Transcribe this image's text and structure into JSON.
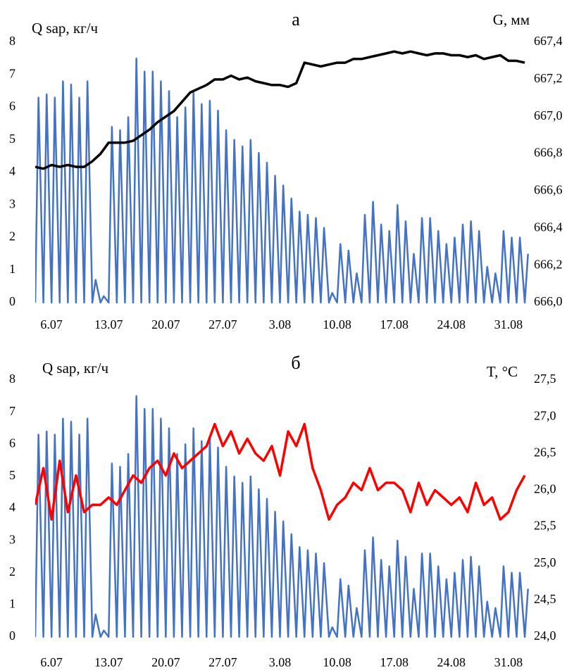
{
  "chart_data": [
    {
      "type": "line",
      "title": "а",
      "ylabel": "Q sap, кг/ч",
      "y2label": "G, мм",
      "xlim": [
        4,
        64.6
      ],
      "xticks": [
        {
          "value": 6,
          "label": "6.07"
        },
        {
          "value": 13,
          "label": "13.07"
        },
        {
          "value": 20,
          "label": "20.07"
        },
        {
          "value": 27,
          "label": "27.07"
        },
        {
          "value": 34,
          "label": "3.08"
        },
        {
          "value": 41,
          "label": "10.08"
        },
        {
          "value": 48,
          "label": "17.08"
        },
        {
          "value": 55,
          "label": "24.08"
        },
        {
          "value": 62,
          "label": "31.08"
        }
      ],
      "ylim": [
        0,
        8
      ],
      "yticks": [
        0,
        1,
        2,
        3,
        4,
        5,
        6,
        7,
        8
      ],
      "y2lim": [
        666.0,
        667.4
      ],
      "y2ticks": [
        {
          "value": 666.0,
          "label": "666,0"
        },
        {
          "value": 666.2,
          "label": "666,2"
        },
        {
          "value": 666.4,
          "label": "666,4"
        },
        {
          "value": 666.6,
          "label": "666,6"
        },
        {
          "value": 666.8,
          "label": "666,8"
        },
        {
          "value": 667.0,
          "label": "667,0"
        },
        {
          "value": 667.2,
          "label": "667,2"
        },
        {
          "value": 667.4,
          "label": "667,4"
        }
      ],
      "series": [
        {
          "color": "#4472c4",
          "x": [
            4,
            4.4,
            5,
            5.4,
            6,
            6.4,
            7,
            7.4,
            8,
            8.4,
            9,
            9.4,
            10,
            10.4,
            11,
            11.4,
            12,
            12.4,
            13,
            13.4,
            14,
            14.4,
            15,
            15.4,
            16,
            16.4,
            17,
            17.4,
            18,
            18.4,
            19,
            19.4,
            20,
            20.4,
            21,
            21.4,
            22,
            22.4,
            23,
            23.4,
            24,
            24.4,
            25,
            25.4,
            26,
            26.4,
            27,
            27.4,
            28,
            28.4,
            29,
            29.4,
            30,
            30.4,
            31,
            31.4,
            32,
            32.4,
            33,
            33.4,
            34,
            34.4,
            35,
            35.4,
            36,
            36.4,
            37,
            37.4,
            38,
            38.4,
            39,
            39.4,
            40,
            40.4,
            41,
            41.4,
            42,
            42.4,
            43,
            43.4,
            44,
            44.4,
            45,
            45.4,
            46,
            46.4,
            47,
            47.4,
            48,
            48.4,
            49,
            49.4,
            50,
            50.4,
            51,
            51.4,
            52,
            52.4,
            53,
            53.4,
            54,
            54.4,
            55,
            55.4,
            56,
            56.4,
            57,
            57.4,
            58,
            58.4,
            59,
            59.4,
            60,
            60.4,
            61,
            61.4,
            62,
            62.4,
            63,
            63.4,
            64,
            64.4
          ],
          "values": [
            0,
            6.3,
            0,
            6.4,
            0,
            6.3,
            0,
            6.8,
            0,
            6.7,
            0,
            6.3,
            0,
            6.8,
            0,
            0.7,
            0,
            0.2,
            0,
            5.4,
            0,
            5.3,
            0,
            5.7,
            0,
            7.5,
            0,
            7.1,
            0,
            7.1,
            0,
            6.8,
            0,
            6.5,
            0,
            5.7,
            0,
            6.0,
            0,
            6.5,
            0,
            6.1,
            0,
            6.2,
            0,
            5.9,
            0,
            5.3,
            0,
            5.0,
            0,
            4.8,
            0,
            5.0,
            0,
            4.6,
            0,
            4.3,
            0,
            3.9,
            0,
            3.6,
            0,
            3.2,
            0,
            2.8,
            0,
            2.7,
            0,
            2.6,
            0,
            2.3,
            0,
            0.3,
            0,
            1.8,
            0,
            1.6,
            0,
            0.9,
            0,
            2.7,
            0,
            3.1,
            0,
            2.4,
            0,
            2.2,
            0,
            3.0,
            0,
            2.5,
            0,
            1.5,
            0,
            2.6,
            0,
            2.6,
            0,
            2.2,
            0,
            1.8,
            0,
            2.0,
            0,
            2.4,
            0,
            2.5,
            0,
            2.2,
            0,
            1.1,
            0,
            0.9,
            0,
            2.2,
            0,
            2.0,
            0,
            2.0,
            0,
            1.5
          ]
        },
        {
          "color": "#000000",
          "axis": "y2",
          "x": [
            4,
            5,
            6,
            7,
            8,
            9,
            10,
            11,
            12,
            13,
            14,
            15,
            16,
            17,
            18,
            19,
            20,
            21,
            22,
            23,
            24,
            25,
            26,
            27,
            28,
            29,
            30,
            31,
            32,
            33,
            34,
            35,
            36,
            37,
            38,
            39,
            40,
            41,
            42,
            43,
            44,
            45,
            46,
            47,
            48,
            49,
            50,
            51,
            52,
            53,
            54,
            55,
            56,
            57,
            58,
            59,
            60,
            61,
            62,
            63,
            64
          ],
          "values": [
            666.73,
            666.72,
            666.74,
            666.73,
            666.74,
            666.73,
            666.73,
            666.76,
            666.8,
            666.86,
            666.86,
            666.86,
            666.87,
            666.9,
            666.93,
            666.97,
            667.0,
            667.03,
            667.08,
            667.13,
            667.15,
            667.17,
            667.2,
            667.2,
            667.22,
            667.2,
            667.21,
            667.19,
            667.18,
            667.17,
            667.17,
            667.16,
            667.18,
            667.29,
            667.28,
            667.27,
            667.28,
            667.29,
            667.29,
            667.31,
            667.31,
            667.32,
            667.33,
            667.34,
            667.35,
            667.34,
            667.35,
            667.34,
            667.33,
            667.34,
            667.34,
            667.33,
            667.33,
            667.32,
            667.33,
            667.31,
            667.32,
            667.33,
            667.3,
            667.3,
            667.29
          ]
        }
      ]
    },
    {
      "type": "line",
      "title": "б",
      "ylabel": "Q sap, кг/ч",
      "y2label": "T, °C",
      "xlim": [
        4,
        64.6
      ],
      "xticks": [
        {
          "value": 6,
          "label": "6.07"
        },
        {
          "value": 13,
          "label": "13.07"
        },
        {
          "value": 20,
          "label": "20.07"
        },
        {
          "value": 27,
          "label": "27.07"
        },
        {
          "value": 34,
          "label": "3.08"
        },
        {
          "value": 41,
          "label": "10.08"
        },
        {
          "value": 48,
          "label": "17.08"
        },
        {
          "value": 55,
          "label": "24.08"
        },
        {
          "value": 62,
          "label": "31.08"
        }
      ],
      "ylim": [
        0,
        8
      ],
      "yticks": [
        0,
        1,
        2,
        3,
        4,
        5,
        6,
        7,
        8
      ],
      "y2lim": [
        24.0,
        27.5
      ],
      "y2ticks": [
        {
          "value": 24.0,
          "label": "24,0"
        },
        {
          "value": 24.5,
          "label": "24,5"
        },
        {
          "value": 25.0,
          "label": "25,0"
        },
        {
          "value": 25.5,
          "label": "25,5"
        },
        {
          "value": 26.0,
          "label": "26,0"
        },
        {
          "value": 26.5,
          "label": "26,5"
        },
        {
          "value": 27.0,
          "label": "27,0"
        },
        {
          "value": 27.5,
          "label": "27,5"
        }
      ],
      "series": [
        {
          "color": "#4472c4",
          "x": [
            4,
            4.4,
            5,
            5.4,
            6,
            6.4,
            7,
            7.4,
            8,
            8.4,
            9,
            9.4,
            10,
            10.4,
            11,
            11.4,
            12,
            12.4,
            13,
            13.4,
            14,
            14.4,
            15,
            15.4,
            16,
            16.4,
            17,
            17.4,
            18,
            18.4,
            19,
            19.4,
            20,
            20.4,
            21,
            21.4,
            22,
            22.4,
            23,
            23.4,
            24,
            24.4,
            25,
            25.4,
            26,
            26.4,
            27,
            27.4,
            28,
            28.4,
            29,
            29.4,
            30,
            30.4,
            31,
            31.4,
            32,
            32.4,
            33,
            33.4,
            34,
            34.4,
            35,
            35.4,
            36,
            36.4,
            37,
            37.4,
            38,
            38.4,
            39,
            39.4,
            40,
            40.4,
            41,
            41.4,
            42,
            42.4,
            43,
            43.4,
            44,
            44.4,
            45,
            45.4,
            46,
            46.4,
            47,
            47.4,
            48,
            48.4,
            49,
            49.4,
            50,
            50.4,
            51,
            51.4,
            52,
            52.4,
            53,
            53.4,
            54,
            54.4,
            55,
            55.4,
            56,
            56.4,
            57,
            57.4,
            58,
            58.4,
            59,
            59.4,
            60,
            60.4,
            61,
            61.4,
            62,
            62.4,
            63,
            63.4,
            64,
            64.4
          ],
          "values": [
            0,
            6.3,
            0,
            6.4,
            0,
            6.3,
            0,
            6.8,
            0,
            6.7,
            0,
            6.3,
            0,
            6.8,
            0,
            0.7,
            0,
            0.2,
            0,
            5.4,
            0,
            5.3,
            0,
            5.7,
            0,
            7.5,
            0,
            7.1,
            0,
            7.1,
            0,
            6.8,
            0,
            6.5,
            0,
            5.7,
            0,
            6.0,
            0,
            6.5,
            0,
            6.1,
            0,
            6.2,
            0,
            5.9,
            0,
            5.3,
            0,
            5.0,
            0,
            4.8,
            0,
            5.0,
            0,
            4.6,
            0,
            4.3,
            0,
            3.9,
            0,
            3.6,
            0,
            3.2,
            0,
            2.8,
            0,
            2.7,
            0,
            2.6,
            0,
            2.3,
            0,
            0.3,
            0,
            1.8,
            0,
            1.6,
            0,
            0.9,
            0,
            2.7,
            0,
            3.1,
            0,
            2.4,
            0,
            2.2,
            0,
            3.0,
            0,
            2.5,
            0,
            1.5,
            0,
            2.6,
            0,
            2.6,
            0,
            2.2,
            0,
            1.8,
            0,
            2.0,
            0,
            2.4,
            0,
            2.5,
            0,
            2.2,
            0,
            1.1,
            0,
            0.9,
            0,
            2.2,
            0,
            2.0,
            0,
            2.0,
            0,
            1.5
          ]
        },
        {
          "color": "#ff0000",
          "axis": "y2",
          "x": [
            4,
            5,
            6,
            7,
            8,
            9,
            10,
            11,
            12,
            13,
            14,
            15,
            16,
            17,
            18,
            19,
            20,
            21,
            22,
            23,
            24,
            25,
            26,
            27,
            28,
            29,
            30,
            31,
            32,
            33,
            34,
            35,
            36,
            37,
            38,
            39,
            40,
            41,
            42,
            43,
            44,
            45,
            46,
            47,
            48,
            49,
            50,
            51,
            52,
            53,
            54,
            55,
            56,
            57,
            58,
            59,
            60,
            61,
            62,
            63,
            64
          ],
          "values": [
            25.8,
            26.3,
            25.6,
            26.4,
            25.7,
            26.2,
            25.7,
            25.8,
            25.8,
            25.9,
            25.8,
            26.0,
            26.2,
            26.1,
            26.3,
            26.4,
            26.2,
            26.5,
            26.3,
            26.4,
            26.5,
            26.6,
            26.9,
            26.6,
            26.8,
            26.5,
            26.7,
            26.5,
            26.4,
            26.6,
            26.2,
            26.8,
            26.6,
            26.9,
            26.3,
            26.0,
            25.6,
            25.8,
            25.9,
            26.1,
            26.0,
            26.3,
            26.0,
            26.1,
            26.1,
            26.0,
            25.7,
            26.1,
            25.8,
            26.0,
            25.9,
            25.8,
            25.9,
            25.7,
            26.1,
            25.8,
            25.9,
            25.6,
            25.7,
            26.0,
            26.2
          ]
        }
      ]
    }
  ]
}
